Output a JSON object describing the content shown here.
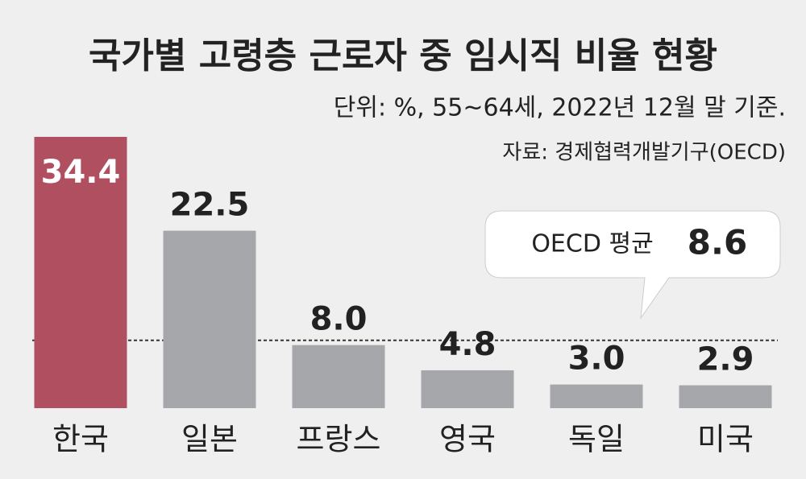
{
  "chart_data": {
    "type": "bar",
    "title": "국가별 고령층 근로자 중 임시직 비율 현황",
    "subtitle": "단위: %, 55~64세, 2022년 12월 말 기준.",
    "source": "자료: 경제협력개발기구(OECD)",
    "categories": [
      "한국",
      "일본",
      "프랑스",
      "영국",
      "독일",
      "미국"
    ],
    "values": [
      34.4,
      22.5,
      8.0,
      4.8,
      3.0,
      2.9
    ],
    "value_labels": [
      "34.4",
      "22.5",
      "8.0",
      "4.8",
      "3.0",
      "2.9"
    ],
    "colors": [
      "#b04f60",
      "#a6a7aa",
      "#a6a7aa",
      "#a6a7aa",
      "#a6a7aa",
      "#a6a7aa"
    ],
    "average": {
      "label": "OECD 평균",
      "value": 8.6
    }
  }
}
